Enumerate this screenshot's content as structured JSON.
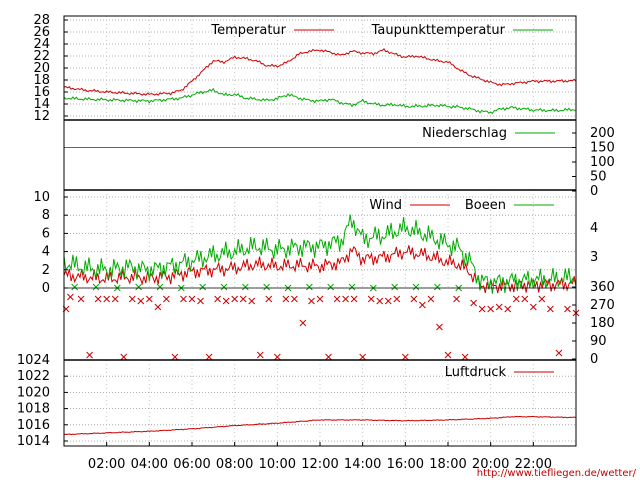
{
  "chart_data": [
    {
      "type": "line",
      "panel": "temperature",
      "yticks": [
        12,
        14,
        16,
        18,
        20,
        22,
        24,
        26,
        28
      ],
      "ylim": [
        12,
        28
      ],
      "grid": "dotted",
      "legend_placement": "top-right",
      "series": [
        {
          "name": "Temperatur",
          "color": "#cc0000",
          "x": [
            0,
            1,
            2,
            3,
            4,
            5,
            5.5,
            6,
            6.5,
            7,
            7.5,
            8,
            8.5,
            9,
            9.5,
            10,
            10.5,
            11,
            11.5,
            12,
            12.5,
            13,
            13.5,
            14,
            14.5,
            15,
            15.5,
            16,
            16.5,
            17,
            17.5,
            18,
            18.5,
            19,
            19.5,
            20,
            20.5,
            21,
            22,
            23,
            24
          ],
          "y": [
            16.8,
            16.3,
            16.0,
            15.8,
            15.6,
            15.8,
            16.3,
            17.8,
            19.5,
            21.2,
            21.0,
            21.8,
            21.6,
            21.2,
            20.4,
            20.3,
            21.0,
            22.3,
            22.8,
            23.0,
            22.6,
            22.1,
            22.8,
            22.5,
            22.4,
            23.0,
            22.3,
            21.8,
            22.0,
            21.6,
            21.2,
            21.0,
            19.8,
            18.8,
            18.2,
            17.6,
            17.2,
            17.4,
            17.8,
            17.8,
            17.9
          ]
        },
        {
          "name": "Taupunkttemperatur",
          "color": "#00aa00",
          "x": [
            0,
            1,
            2,
            3,
            4,
            5,
            5.5,
            6,
            6.5,
            7,
            7.5,
            8,
            8.5,
            9,
            9.5,
            10,
            10.5,
            11,
            11.5,
            12,
            12.5,
            13,
            13.5,
            14,
            14.5,
            15,
            15.5,
            16,
            16.5,
            17,
            17.5,
            18,
            18.5,
            19,
            19.5,
            20,
            20.5,
            21,
            22,
            23,
            24
          ],
          "y": [
            15.0,
            14.8,
            14.7,
            14.6,
            14.5,
            14.8,
            15.0,
            15.5,
            16.0,
            16.3,
            15.5,
            15.6,
            15.0,
            14.8,
            14.6,
            14.9,
            15.6,
            15.0,
            14.6,
            14.5,
            14.8,
            14.2,
            13.8,
            14.5,
            14.0,
            13.8,
            13.9,
            13.6,
            13.6,
            13.7,
            13.8,
            13.6,
            13.5,
            13.2,
            12.8,
            12.6,
            13.2,
            13.4,
            13.0,
            12.9,
            13.1
          ]
        }
      ]
    },
    {
      "type": "line",
      "panel": "precipitation",
      "yticks": [
        0,
        50,
        100,
        150,
        200
      ],
      "ylim": [
        0,
        200
      ],
      "legend_placement": "top-right",
      "series": [
        {
          "name": "Niederschlag",
          "color": "#00aa00",
          "x": [
            0,
            24
          ],
          "y": [
            150,
            150
          ]
        }
      ]
    },
    {
      "type": "line",
      "panel": "wind",
      "yticks": [
        0,
        2,
        4,
        6,
        8,
        10
      ],
      "ylim": [
        0,
        10
      ],
      "right_scale_labels": [
        "4",
        "3"
      ],
      "right_scale_values": [
        6.6,
        3.4
      ],
      "grid": "dotted",
      "legend_placement": "top-right",
      "series": [
        {
          "name": "Wind",
          "color": "#cc0000",
          "x": [
            0,
            1,
            2,
            3,
            4,
            5,
            6,
            7,
            8,
            9,
            10,
            11,
            12,
            13,
            13.5,
            14,
            15,
            16,
            17,
            18,
            18.5,
            19,
            19.5,
            20,
            21,
            22,
            23,
            24
          ],
          "y": [
            1.4,
            1.2,
            1.0,
            1.2,
            1.1,
            1.3,
            1.8,
            2.0,
            2.2,
            2.6,
            2.4,
            2.5,
            2.4,
            2.8,
            4.2,
            3.2,
            3.4,
            4.0,
            3.6,
            2.8,
            2.6,
            1.8,
            0.3,
            0.2,
            0.3,
            0.4,
            0.4,
            0.5
          ]
        },
        {
          "name": "Boeen",
          "color": "#00aa00",
          "x": [
            0,
            1,
            2,
            3,
            4,
            5,
            6,
            7,
            8,
            9,
            10,
            11,
            12,
            13,
            13.5,
            14,
            15,
            16,
            17,
            18,
            18.5,
            19,
            19.5,
            20,
            21,
            22,
            23,
            24
          ],
          "y": [
            2.8,
            2.2,
            2.0,
            2.3,
            2.0,
            2.4,
            3.0,
            3.6,
            4.0,
            4.6,
            4.2,
            4.5,
            4.6,
            5.2,
            7.5,
            5.4,
            5.8,
            6.6,
            5.8,
            4.8,
            4.4,
            3.0,
            0.8,
            0.6,
            0.8,
            0.9,
            1.0,
            1.2
          ]
        }
      ]
    },
    {
      "type": "scatter",
      "panel": "wind-direction",
      "yticks": [
        0,
        90,
        180,
        270,
        360
      ],
      "ylim": [
        0,
        360
      ],
      "marker": "x",
      "series": [
        {
          "name": "",
          "color": "#cc0000",
          "x": [
            0.1,
            0.3,
            0.8,
            1.2,
            1.6,
            2.0,
            2.4,
            2.8,
            3.2,
            3.6,
            4.0,
            4.4,
            4.8,
            5.2,
            5.6,
            6.0,
            6.4,
            6.8,
            7.2,
            7.6,
            8.0,
            8.4,
            8.8,
            9.2,
            9.6,
            10.0,
            10.4,
            10.8,
            11.2,
            11.6,
            12.0,
            12.4,
            12.8,
            13.2,
            13.6,
            14.0,
            14.4,
            14.8,
            15.2,
            15.6,
            16.0,
            16.4,
            16.8,
            17.2,
            17.6,
            18.0,
            18.4,
            18.8,
            19.2,
            19.6,
            20.0,
            20.4,
            20.8,
            21.2,
            21.6,
            22.0,
            22.4,
            22.8,
            23.2,
            23.6,
            24.0
          ],
          "y": [
            250,
            310,
            300,
            20,
            300,
            300,
            300,
            10,
            300,
            290,
            300,
            260,
            300,
            10,
            300,
            300,
            290,
            10,
            300,
            290,
            300,
            300,
            290,
            20,
            300,
            10,
            300,
            300,
            180,
            290,
            300,
            10,
            300,
            300,
            300,
            10,
            300,
            290,
            290,
            300,
            10,
            300,
            270,
            300,
            160,
            20,
            300,
            10,
            280,
            250,
            250,
            260,
            250,
            300,
            300,
            260,
            300,
            250,
            30,
            250,
            230
          ]
        },
        {
          "name": "",
          "color": "#00aa00",
          "x": [
            0.5,
            1.5,
            2.5,
            3.5,
            4.5,
            5.5,
            6.5,
            7.5,
            8.5,
            9.5,
            10.5,
            11.5,
            12.5,
            13.5,
            14.5,
            15.5,
            16.5,
            17.5,
            18.5
          ],
          "y": [
            360,
            360,
            355,
            360,
            360,
            355,
            360,
            360,
            360,
            360,
            355,
            360,
            360,
            360,
            355,
            360,
            360,
            360,
            355
          ]
        }
      ]
    },
    {
      "type": "line",
      "panel": "pressure",
      "yticks": [
        1014,
        1016,
        1018,
        1020,
        1022,
        1024
      ],
      "ylim": [
        1014,
        1024
      ],
      "grid": "dotted",
      "legend_placement": "top-right",
      "xticks": [
        "02:00",
        "04:00",
        "06:00",
        "08:00",
        "10:00",
        "12:00",
        "14:00",
        "16:00",
        "18:00",
        "20:00",
        "22:00"
      ],
      "xtick_values": [
        2,
        4,
        6,
        8,
        10,
        12,
        14,
        16,
        18,
        20,
        22
      ],
      "xlim": [
        0,
        24
      ],
      "series": [
        {
          "name": "Luftdruck",
          "color": "#cc0000",
          "x": [
            0,
            2,
            4,
            6,
            8,
            10,
            12,
            14,
            16,
            18,
            20,
            21,
            22,
            24
          ],
          "y": [
            1014.8,
            1015.0,
            1015.2,
            1015.5,
            1015.9,
            1016.2,
            1016.6,
            1016.6,
            1016.5,
            1016.6,
            1016.8,
            1017.0,
            1017.0,
            1016.9
          ]
        }
      ]
    }
  ],
  "credit": "http://www.tiefliegen.de/wetter/"
}
